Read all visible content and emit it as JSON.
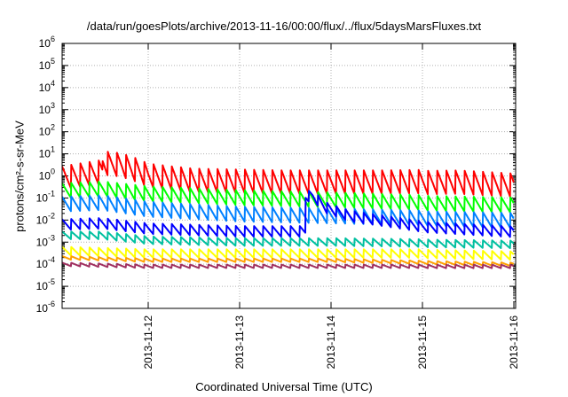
{
  "chart_data": {
    "type": "line",
    "title": "/data/run/goesPlots/archive/2013-11-16/00:00/flux/../flux/5daysMarsFluxes.txt",
    "xlabel": "Coordinated Universal Time (UTC)",
    "ylabel": "protons/cm²-s-sr-MeV",
    "y_scale": "log",
    "ylim": [
      1e-06,
      1000000.0
    ],
    "xlim": [
      "2013-11-11 00:00",
      "2013-11-16 00:00"
    ],
    "x_tick_labels": [
      "2013-11-12",
      "2013-11-13",
      "2013-11-14",
      "2013-11-15",
      "2013-11-16"
    ],
    "y_tick_labels": [
      {
        "base": "10",
        "exp": "-6"
      },
      {
        "base": "10",
        "exp": "-5"
      },
      {
        "base": "10",
        "exp": "-4"
      },
      {
        "base": "10",
        "exp": "-3"
      },
      {
        "base": "10",
        "exp": "-2"
      },
      {
        "base": "10",
        "exp": "-1"
      },
      {
        "base": "10",
        "exp": "0"
      },
      {
        "base": "10",
        "exp": "1"
      },
      {
        "base": "10",
        "exp": "2"
      },
      {
        "base": "10",
        "exp": "3"
      },
      {
        "base": "10",
        "exp": "4"
      },
      {
        "base": "10",
        "exp": "5"
      },
      {
        "base": "10",
        "exp": "6"
      }
    ],
    "grid": true,
    "legend": "none",
    "series": [
      {
        "color": "#ff0000",
        "x_days": [
          0,
          0.5,
          0.5,
          0.55,
          0.7,
          0.9,
          1.0,
          1.5,
          2.5,
          3.5,
          4.4,
          5.0
        ],
        "y": [
          0.7,
          1.5,
          4.0,
          3.5,
          3.0,
          1.6,
          1.0,
          0.6,
          0.5,
          0.5,
          0.55,
          0.4
        ],
        "sawtooth_period": 0.1,
        "sawtooth_depth": 0.55
      },
      {
        "color": "#00ff00",
        "x_days": [
          0,
          0.5,
          1.0,
          2.0,
          3.0,
          4.0,
          5.0
        ],
        "y": [
          0.2,
          0.25,
          0.15,
          0.1,
          0.08,
          0.06,
          0.05
        ],
        "sawtooth_period": 0.1,
        "sawtooth_depth": 0.35
      },
      {
        "color": "#0080ff",
        "x_days": [
          0,
          0.5,
          1.0,
          2.0,
          3.0,
          4.0,
          5.0
        ],
        "y": [
          0.05,
          0.06,
          0.03,
          0.018,
          0.015,
          0.012,
          0.01
        ],
        "sawtooth_period": 0.1,
        "sawtooth_depth": 0.35
      },
      {
        "color": "#0000ff",
        "x_days": [
          0,
          0.5,
          1.0,
          2.0,
          2.72,
          2.72,
          2.8,
          2.95,
          3.2,
          4.0,
          5.0
        ],
        "y": [
          0.006,
          0.007,
          0.004,
          0.003,
          0.003,
          0.12,
          0.12,
          0.035,
          0.015,
          0.005,
          0.003
        ],
        "sawtooth_period": 0.1,
        "sawtooth_depth": 0.25
      },
      {
        "color": "#00c0a0",
        "x_days": [
          0,
          0.5,
          1.0,
          2.0,
          3.0,
          4.0,
          5.0
        ],
        "y": [
          0.002,
          0.002,
          0.0012,
          0.001,
          0.001,
          0.0009,
          0.0008
        ],
        "sawtooth_period": 0.1,
        "sawtooth_depth": 0.18
      },
      {
        "color": "#ffff00",
        "x_days": [
          0,
          1.0,
          2.0,
          3.0,
          4.0,
          5.0
        ],
        "y": [
          0.0004,
          0.0003,
          0.0003,
          0.0003,
          0.0003,
          0.00025
        ],
        "sawtooth_period": 0.1,
        "sawtooth_depth": 0.2
      },
      {
        "color": "#ffa000",
        "x_days": [
          0,
          1.0,
          2.0,
          3.0,
          4.0,
          5.0
        ],
        "y": [
          0.0002,
          0.00015,
          0.00015,
          0.00015,
          0.00012,
          0.0001
        ],
        "sawtooth_period": 0.1,
        "sawtooth_depth": 0.08
      },
      {
        "color": "#a03060",
        "x_days": [
          0,
          1.0,
          2.0,
          3.0,
          4.0,
          5.0
        ],
        "y": [
          0.0001,
          8e-05,
          8e-05,
          8e-05,
          8e-05,
          8e-05
        ],
        "sawtooth_period": 0.1,
        "sawtooth_depth": 0.08
      }
    ]
  }
}
